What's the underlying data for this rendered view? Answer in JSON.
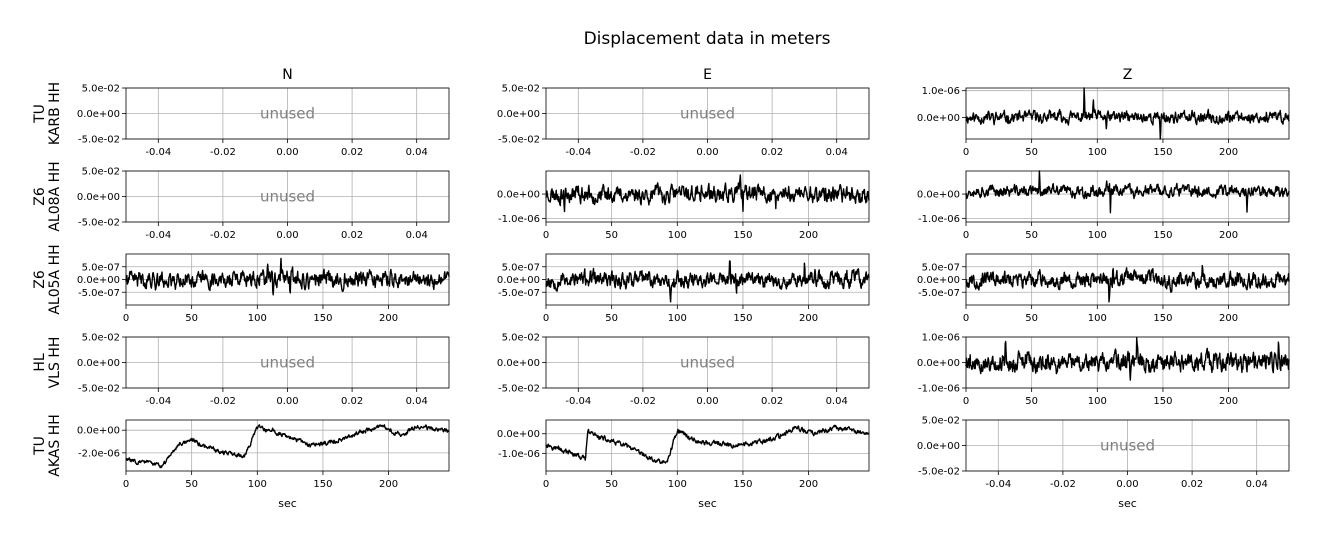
{
  "figure_title": "Displacement data in meters",
  "columns": [
    "N",
    "E",
    "Z"
  ],
  "rows": [
    {
      "network": "TU",
      "station": "KARB HH"
    },
    {
      "network": "Z6",
      "station": "AL08A HH"
    },
    {
      "network": "Z6",
      "station": "AL05A HH"
    },
    {
      "network": "HL",
      "station": "VLS HH"
    },
    {
      "network": "TU",
      "station": "AKAS HH"
    }
  ],
  "xlabel": "sec",
  "unused_label": "unused",
  "chart_data": {
    "type": "line",
    "title": "Displacement data in meters",
    "xlabel": "sec",
    "panels": [
      {
        "row": 0,
        "col": 0,
        "unused": true,
        "xlim": [
          -0.05,
          0.05
        ],
        "xticks": [
          -0.04,
          -0.02,
          0.0,
          0.02,
          0.04
        ],
        "ylim": [
          -0.05,
          0.05
        ],
        "yticks": [
          -0.05,
          0.0,
          0.05
        ],
        "ytick_labels": [
          "-5.0e-02",
          "0.0e+00",
          "5.0e-02"
        ]
      },
      {
        "row": 0,
        "col": 1,
        "unused": true,
        "xlim": [
          -0.05,
          0.05
        ],
        "xticks": [
          -0.04,
          -0.02,
          0.0,
          0.02,
          0.04
        ],
        "ylim": [
          -0.05,
          0.05
        ],
        "yticks": [
          -0.05,
          0.0,
          0.05
        ],
        "ytick_labels": [
          "-5.0e-02",
          "0.0e+00",
          "5.0e-02"
        ]
      },
      {
        "row": 0,
        "col": 2,
        "unused": false,
        "xlim": [
          0,
          246
        ],
        "xticks": [
          0,
          50,
          100,
          150,
          200
        ],
        "ylim": [
          -8e-07,
          1.1e-06
        ],
        "yticks": [
          0.0,
          1e-06
        ],
        "ytick_labels": [
          "0.0e+00",
          "1.0e-06"
        ],
        "signal": {
          "amp": 2.2e-07,
          "offset": 1e-08,
          "seed": 11,
          "drift": [],
          "spikes": [
            [
              90,
              1.05e-06
            ],
            [
              97,
              7e-07
            ],
            [
              148,
              -8e-07
            ],
            [
              107,
              -6e-07
            ]
          ]
        }
      },
      {
        "row": 1,
        "col": 0,
        "unused": true,
        "xlim": [
          -0.05,
          0.05
        ],
        "xticks": [
          -0.04,
          -0.02,
          0.0,
          0.02,
          0.04
        ],
        "ylim": [
          -0.05,
          0.05
        ],
        "yticks": [
          -0.05,
          0.0,
          0.05
        ],
        "ytick_labels": [
          "-5.0e-02",
          "0.0e+00",
          "5.0e-02"
        ]
      },
      {
        "row": 1,
        "col": 1,
        "unused": false,
        "xlim": [
          0,
          246
        ],
        "xticks": [
          0,
          50,
          100,
          150,
          200
        ],
        "ylim": [
          -1.15e-06,
          9.5e-07
        ],
        "yticks": [
          -1e-06,
          0.0
        ],
        "ytick_labels": [
          "-1.0e-06",
          "0.0e+00"
        ],
        "signal": {
          "amp": 3.6e-07,
          "offset": 0.0,
          "seed": 23,
          "drift": [],
          "spikes": [
            [
              148,
              9e-07
            ],
            [
              150,
              -1.1e-06
            ],
            [
              175,
              -1e-06
            ],
            [
              14,
              -7e-07
            ]
          ]
        }
      },
      {
        "row": 1,
        "col": 2,
        "unused": false,
        "xlim": [
          0,
          246
        ],
        "xticks": [
          0,
          50,
          100,
          150,
          200
        ],
        "ylim": [
          -1.15e-06,
          9.5e-07
        ],
        "yticks": [
          -1e-06,
          0.0
        ],
        "ytick_labels": [
          "-1.0e-06",
          "0.0e+00"
        ],
        "signal": {
          "amp": 2.4e-07,
          "offset": 1.2e-07,
          "seed": 37,
          "drift": [],
          "spikes": [
            [
              110,
              -1.1e-06
            ],
            [
              107,
              6e-07
            ],
            [
              56,
              9e-07
            ],
            [
              214,
              -8e-07
            ]
          ]
        }
      },
      {
        "row": 2,
        "col": 0,
        "unused": false,
        "xlim": [
          0,
          246
        ],
        "xticks": [
          0,
          50,
          100,
          150,
          200
        ],
        "ylim": [
          -1e-06,
          1e-06
        ],
        "yticks": [
          -5e-07,
          0.0,
          5e-07
        ],
        "ytick_labels": [
          "-5.0e-07",
          "0.0e+00",
          "5.0e-07"
        ],
        "signal": {
          "amp": 3.2e-07,
          "offset": 0.0,
          "seed": 41,
          "drift": [],
          "spikes": [
            [
              108,
              8e-07
            ],
            [
              112,
              -1e-06
            ],
            [
              118,
              9e-07
            ],
            [
              125,
              -8e-07
            ]
          ]
        }
      },
      {
        "row": 2,
        "col": 1,
        "unused": false,
        "xlim": [
          0,
          246
        ],
        "xticks": [
          0,
          50,
          100,
          150,
          200
        ],
        "ylim": [
          -1e-06,
          1e-06
        ],
        "yticks": [
          -5e-07,
          0.0,
          5e-07
        ],
        "ytick_labels": [
          "-5.0e-07",
          "0.0e+00",
          "5.0e-07"
        ],
        "signal": {
          "amp": 3.2e-07,
          "offset": 0.0,
          "seed": 53,
          "drift": [],
          "spikes": [
            [
              145,
              -1e-06
            ],
            [
              140,
              8e-07
            ],
            [
              197,
              8e-07
            ],
            [
              95,
              -7e-07
            ]
          ]
        }
      },
      {
        "row": 2,
        "col": 2,
        "unused": false,
        "xlim": [
          0,
          246
        ],
        "xticks": [
          0,
          50,
          100,
          150,
          200
        ],
        "ylim": [
          -1e-06,
          1e-06
        ],
        "yticks": [
          -5e-07,
          0.0,
          5e-07
        ],
        "ytick_labels": [
          "-5.0e-07",
          "0.0e+00",
          "5.0e-07"
        ],
        "signal": {
          "amp": 3e-07,
          "offset": 0.0,
          "seed": 67,
          "drift": [],
          "spikes": [
            [
              109,
              -1e-06
            ],
            [
              112,
              8e-07
            ],
            [
              180,
              7e-07
            ],
            [
              43,
              -7e-07
            ]
          ]
        }
      },
      {
        "row": 3,
        "col": 0,
        "unused": true,
        "xlim": [
          -0.05,
          0.05
        ],
        "xticks": [
          -0.04,
          -0.02,
          0.0,
          0.02,
          0.04
        ],
        "ylim": [
          -0.05,
          0.05
        ],
        "yticks": [
          -0.05,
          0.0,
          0.05
        ],
        "ytick_labels": [
          "-5.0e-02",
          "0.0e+00",
          "5.0e-02"
        ]
      },
      {
        "row": 3,
        "col": 1,
        "unused": true,
        "xlim": [
          -0.05,
          0.05
        ],
        "xticks": [
          -0.04,
          -0.02,
          0.0,
          0.02,
          0.04
        ],
        "ylim": [
          -0.05,
          0.05
        ],
        "yticks": [
          -0.05,
          0.0,
          0.05
        ],
        "ytick_labels": [
          "-5.0e-02",
          "0.0e+00",
          "5.0e-02"
        ]
      },
      {
        "row": 3,
        "col": 2,
        "unused": false,
        "xlim": [
          0,
          246
        ],
        "xticks": [
          0,
          50,
          100,
          150,
          200
        ],
        "ylim": [
          -1e-06,
          1e-06
        ],
        "yticks": [
          -1e-06,
          0.0,
          1e-06
        ],
        "ytick_labels": [
          "-1.0e-06",
          "0.0e+00",
          "1.0e-06"
        ],
        "signal": {
          "amp": 3.8e-07,
          "offset": 0.0,
          "seed": 79,
          "drift": [],
          "spikes": [
            [
              125,
              -1e-06
            ],
            [
              130,
              9e-07
            ],
            [
              30,
              8e-07
            ],
            [
              238,
              8e-07
            ]
          ]
        }
      },
      {
        "row": 4,
        "col": 0,
        "unused": false,
        "xlim": [
          0,
          246
        ],
        "xticks": [
          0,
          50,
          100,
          150,
          200
        ],
        "ylim": [
          -3.6e-06,
          9e-07
        ],
        "yticks": [
          -2e-06,
          0.0
        ],
        "ytick_labels": [
          "-2.0e-06",
          "0.0e+00"
        ],
        "signal": {
          "amp": 2e-07,
          "offset": 0.0,
          "seed": 83,
          "drift": [
            [
              0,
              -2.6e-06
            ],
            [
              15,
              -2.8e-06
            ],
            [
              28,
              -3.2e-06
            ],
            [
              32,
              -2.4e-06
            ],
            [
              40,
              -1.2e-06
            ],
            [
              50,
              -8e-07
            ],
            [
              60,
              -1.4e-06
            ],
            [
              75,
              -2e-06
            ],
            [
              90,
              -2.3e-06
            ],
            [
              100,
              2e-07
            ],
            [
              110,
              0.0
            ],
            [
              125,
              -6e-07
            ],
            [
              140,
              -1.4e-06
            ],
            [
              160,
              -1e-06
            ],
            [
              175,
              -3e-07
            ],
            [
              195,
              3e-07
            ],
            [
              210,
              -4e-07
            ],
            [
              222,
              4e-07
            ],
            [
              246,
              -1e-07
            ]
          ],
          "spikes": []
        }
      },
      {
        "row": 4,
        "col": 1,
        "unused": false,
        "xlim": [
          0,
          246
        ],
        "xticks": [
          0,
          50,
          100,
          150,
          200
        ],
        "ylim": [
          -1.9e-06,
          7e-07
        ],
        "yticks": [
          -1e-06,
          0.0
        ],
        "ytick_labels": [
          "-1.0e-06",
          "0.0e+00"
        ],
        "signal": {
          "amp": 1.3e-07,
          "offset": 0.0,
          "seed": 97,
          "drift": [
            [
              0,
              -5e-07
            ],
            [
              15,
              -9e-07
            ],
            [
              30,
              -1.3e-06
            ],
            [
              32,
              1e-07
            ],
            [
              45,
              -3e-07
            ],
            [
              60,
              -6e-07
            ],
            [
              80,
              -1.3e-06
            ],
            [
              92,
              -1.5e-06
            ],
            [
              100,
              2e-07
            ],
            [
              115,
              -4e-07
            ],
            [
              140,
              -6e-07
            ],
            [
              160,
              -5e-07
            ],
            [
              175,
              -2e-07
            ],
            [
              190,
              3e-07
            ],
            [
              205,
              0.0
            ],
            [
              220,
              3e-07
            ],
            [
              246,
              0.0
            ]
          ],
          "spikes": []
        }
      },
      {
        "row": 4,
        "col": 2,
        "unused": true,
        "xlim": [
          -0.05,
          0.05
        ],
        "xticks": [
          -0.04,
          -0.02,
          0.0,
          0.02,
          0.04
        ],
        "ylim": [
          -0.05,
          0.05
        ],
        "yticks": [
          -0.05,
          0.0,
          0.05
        ],
        "ytick_labels": [
          "-5.0e-02",
          "0.0e+00",
          "5.0e-02"
        ]
      }
    ]
  }
}
